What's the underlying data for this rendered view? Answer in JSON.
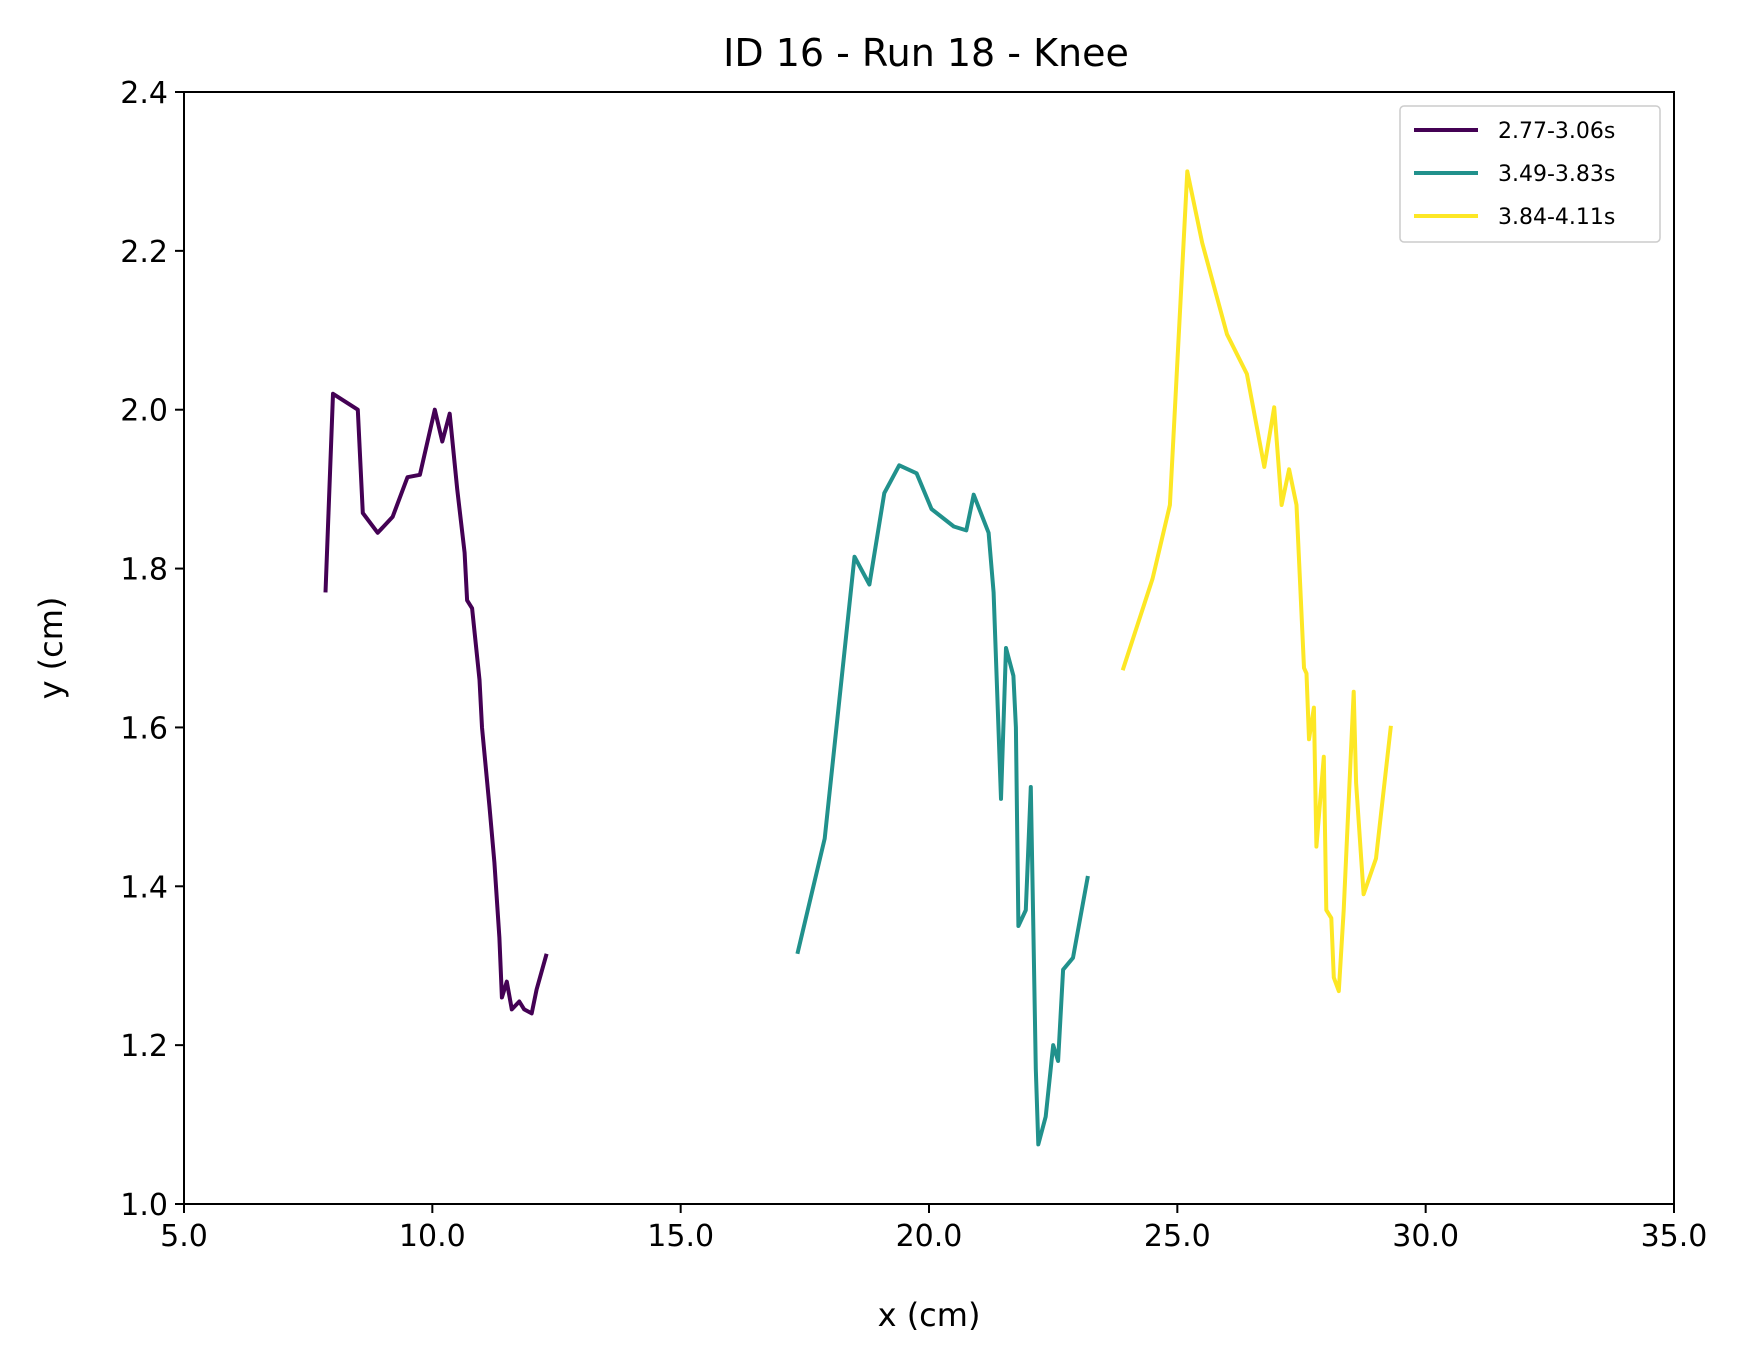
{
  "chart_data": {
    "type": "line",
    "title": "ID 16 - Run 18 - Knee",
    "xlabel": "x (cm)",
    "ylabel": "y (cm)",
    "xlim": [
      5.0,
      35.0
    ],
    "ylim": [
      1.0,
      2.4
    ],
    "xticks": [
      "5.0",
      "10.0",
      "15.0",
      "20.0",
      "25.0",
      "30.0",
      "35.0"
    ],
    "yticks": [
      "1.0",
      "1.2",
      "1.4",
      "1.6",
      "1.8",
      "2.0",
      "2.2",
      "2.4"
    ],
    "grid": false,
    "legend_position": "top-right",
    "series": [
      {
        "name": "2.77-3.06s",
        "color": "#440154",
        "points": [
          [
            7.85,
            1.77
          ],
          [
            8.0,
            2.02
          ],
          [
            8.5,
            2.0
          ],
          [
            8.6,
            1.87
          ],
          [
            8.9,
            1.845
          ],
          [
            9.2,
            1.865
          ],
          [
            9.5,
            1.915
          ],
          [
            9.75,
            1.918
          ],
          [
            10.05,
            2.0
          ],
          [
            10.2,
            1.96
          ],
          [
            10.35,
            1.995
          ],
          [
            10.5,
            1.9
          ],
          [
            10.65,
            1.82
          ],
          [
            10.7,
            1.76
          ],
          [
            10.8,
            1.75
          ],
          [
            10.95,
            1.66
          ],
          [
            11.0,
            1.6
          ],
          [
            11.15,
            1.5
          ],
          [
            11.25,
            1.43
          ],
          [
            11.35,
            1.335
          ],
          [
            11.4,
            1.26
          ],
          [
            11.5,
            1.28
          ],
          [
            11.6,
            1.245
          ],
          [
            11.75,
            1.255
          ],
          [
            11.85,
            1.245
          ],
          [
            12.0,
            1.24
          ],
          [
            12.1,
            1.27
          ],
          [
            12.3,
            1.315
          ]
        ]
      },
      {
        "name": "3.49-3.83s",
        "color": "#21918c",
        "points": [
          [
            17.35,
            1.315
          ],
          [
            17.9,
            1.46
          ],
          [
            18.5,
            1.815
          ],
          [
            18.8,
            1.78
          ],
          [
            19.1,
            1.895
          ],
          [
            19.4,
            1.93
          ],
          [
            19.75,
            1.92
          ],
          [
            20.05,
            1.875
          ],
          [
            20.5,
            1.853
          ],
          [
            20.75,
            1.848
          ],
          [
            20.9,
            1.893
          ],
          [
            21.2,
            1.845
          ],
          [
            21.3,
            1.77
          ],
          [
            21.45,
            1.51
          ],
          [
            21.55,
            1.7
          ],
          [
            21.7,
            1.665
          ],
          [
            21.75,
            1.6
          ],
          [
            21.8,
            1.35
          ],
          [
            21.95,
            1.37
          ],
          [
            22.05,
            1.525
          ],
          [
            22.1,
            1.35
          ],
          [
            22.15,
            1.17
          ],
          [
            22.2,
            1.075
          ],
          [
            22.35,
            1.11
          ],
          [
            22.5,
            1.2
          ],
          [
            22.6,
            1.18
          ],
          [
            22.7,
            1.295
          ],
          [
            22.9,
            1.31
          ],
          [
            23.2,
            1.413
          ]
        ]
      },
      {
        "name": "3.84-4.11s",
        "color": "#fde725",
        "points": [
          [
            23.9,
            1.672
          ],
          [
            24.5,
            1.787
          ],
          [
            24.85,
            1.88
          ],
          [
            25.2,
            2.3
          ],
          [
            25.5,
            2.21
          ],
          [
            26.0,
            2.095
          ],
          [
            26.4,
            2.045
          ],
          [
            26.75,
            1.928
          ],
          [
            26.95,
            2.003
          ],
          [
            27.1,
            1.88
          ],
          [
            27.25,
            1.925
          ],
          [
            27.4,
            1.88
          ],
          [
            27.55,
            1.675
          ],
          [
            27.6,
            1.668
          ],
          [
            27.65,
            1.585
          ],
          [
            27.75,
            1.625
          ],
          [
            27.8,
            1.45
          ],
          [
            27.95,
            1.563
          ],
          [
            28.0,
            1.37
          ],
          [
            28.1,
            1.36
          ],
          [
            28.15,
            1.285
          ],
          [
            28.25,
            1.268
          ],
          [
            28.35,
            1.37
          ],
          [
            28.55,
            1.645
          ],
          [
            28.6,
            1.53
          ],
          [
            28.75,
            1.39
          ],
          [
            29.0,
            1.435
          ],
          [
            29.3,
            1.602
          ]
        ]
      }
    ]
  }
}
